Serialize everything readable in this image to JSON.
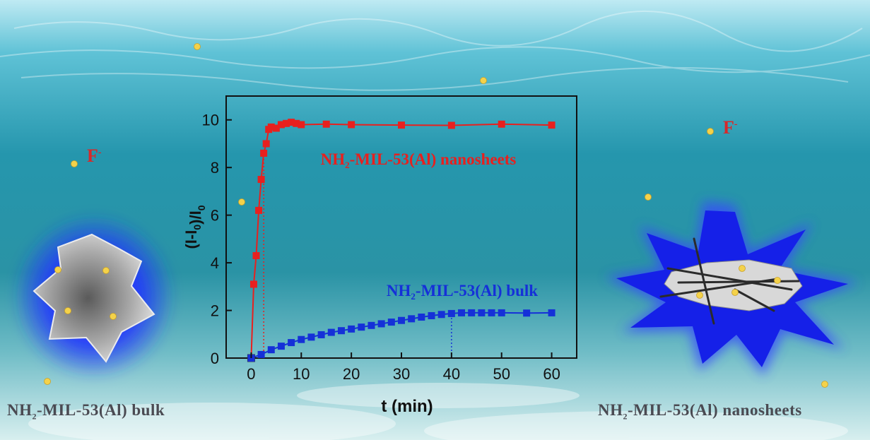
{
  "colors": {
    "nanosheets": "#e8201e",
    "bulk": "#1530d8",
    "fluoride": "#d8282a",
    "particle": "#f4d24a"
  },
  "labels": {
    "bulk_caption_pre": "NH",
    "bulk_caption_sub": "2",
    "bulk_caption_post": "-MIL-53(Al) bulk",
    "nano_caption_pre": "NH",
    "nano_caption_sub": "2",
    "nano_caption_post": "-MIL-53(Al) nanosheets",
    "fluoride_symbol": "F",
    "fluoride_charge": "-"
  },
  "chart_data": {
    "type": "scatter",
    "xlabel": "t (min)",
    "ylabel": "(I-I0)/I0",
    "xlim": [
      -5,
      65
    ],
    "ylim": [
      0,
      11
    ],
    "xticks": [
      0,
      10,
      20,
      30,
      40,
      50,
      60
    ],
    "yticks": [
      0,
      2,
      4,
      6,
      8,
      10
    ],
    "grid": false,
    "legend": "inline labels",
    "series": [
      {
        "name": "NH2-MIL-53(Al) nanosheets",
        "label_pre": "NH",
        "label_sub": "2",
        "label_post": "-MIL-53(Al) nanosheets",
        "color": "#e8201e",
        "x": [
          0,
          0.5,
          1,
          1.5,
          2,
          2.5,
          3,
          3.5,
          4,
          5,
          6,
          7,
          8,
          9,
          10,
          15,
          20,
          30,
          40,
          50,
          60
        ],
        "y": [
          0,
          3.1,
          4.3,
          6.2,
          7.5,
          8.6,
          9.0,
          9.6,
          9.7,
          9.65,
          9.8,
          9.85,
          9.9,
          9.85,
          9.8,
          9.82,
          9.8,
          9.78,
          9.77,
          9.82,
          9.78
        ]
      },
      {
        "name": "NH2-MIL-53(Al) bulk",
        "label_pre": "NH",
        "label_sub": "2",
        "label_post": "-MIL-53(Al) bulk",
        "color": "#1530d8",
        "x": [
          0,
          2,
          4,
          6,
          8,
          10,
          12,
          14,
          16,
          18,
          20,
          22,
          24,
          26,
          28,
          30,
          32,
          34,
          36,
          38,
          40,
          42,
          44,
          46,
          48,
          50,
          55,
          60
        ],
        "y": [
          0,
          0.15,
          0.35,
          0.5,
          0.65,
          0.78,
          0.88,
          0.98,
          1.08,
          1.15,
          1.22,
          1.3,
          1.37,
          1.44,
          1.51,
          1.58,
          1.65,
          1.72,
          1.78,
          1.83,
          1.87,
          1.9,
          1.9,
          1.9,
          1.9,
          1.9,
          1.89,
          1.9
        ]
      }
    ],
    "annotations": [
      {
        "type": "vline",
        "series": "nanosheets",
        "x": 2.5
      },
      {
        "type": "vline",
        "series": "bulk",
        "x": 40
      }
    ]
  }
}
